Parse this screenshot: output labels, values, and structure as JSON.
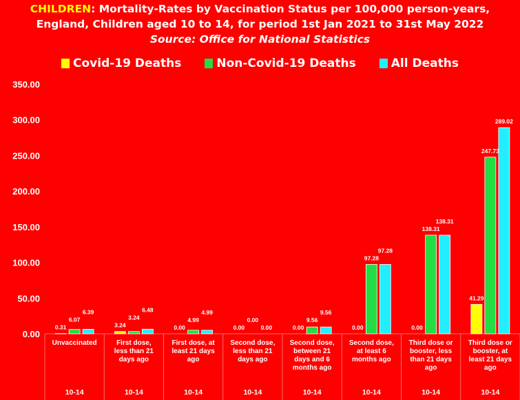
{
  "chart_data": {
    "type": "bar",
    "title_highlight": "CHILDREN",
    "title_rest": ": Mortality-Rates by Vaccination Status per 100,000 person-years,",
    "title_line2": "England, Children aged 10 to 14, for period 1st Jan 2021 to 31st May 2022",
    "subtitle": "Source: Office for National Statistics",
    "categories": [
      "Unvaccinated",
      "First dose, less than 21 days ago",
      "First dose, at least 21 days ago",
      "Second dose, less than 21 days ago",
      "Second dose, between 21 days and 6 months ago",
      "Second dose, at least 6 months ago",
      "Third dose or booster, less than 21 days ago",
      "Third dose or booster, at least 21 days ago"
    ],
    "age_group_labels": [
      "10-14",
      "10-14",
      "10-14",
      "10-14",
      "10-14",
      "10-14",
      "10-14",
      "10-14"
    ],
    "series": [
      {
        "name": "Covid-19 Deaths",
        "color": "#ffff00",
        "values": [
          0.31,
          3.24,
          0.0,
          0.0,
          0.0,
          0.0,
          0.0,
          41.29
        ]
      },
      {
        "name": "Non-Covid-19 Deaths",
        "color": "#22dd44",
        "values": [
          6.07,
          3.24,
          4.99,
          0.0,
          9.56,
          97.28,
          138.31,
          247.73
        ]
      },
      {
        "name": "All Deaths",
        "color": "#22eeff",
        "values": [
          6.39,
          6.48,
          4.99,
          0.0,
          9.56,
          97.28,
          138.31,
          289.02
        ]
      }
    ],
    "ylim": [
      0,
      350
    ],
    "yticks": [
      "0.00",
      "50.00",
      "100.00",
      "150.00",
      "200.00",
      "250.00",
      "300.00",
      "350.00"
    ],
    "grid": false,
    "legend_position": "top"
  }
}
